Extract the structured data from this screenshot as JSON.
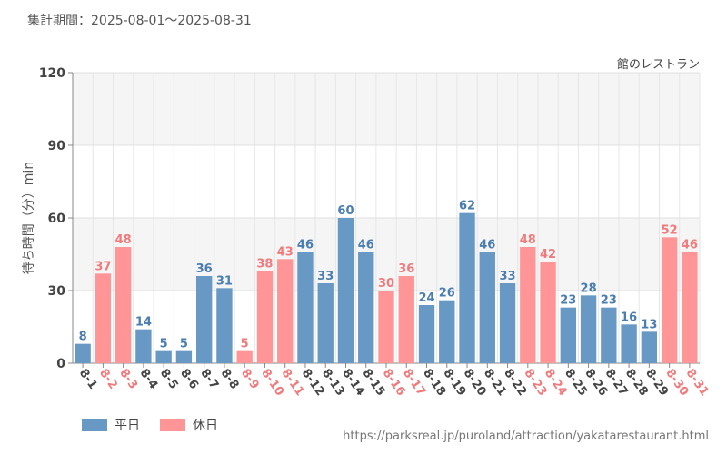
{
  "header": {
    "period": "集計期間：2025-08-01～2025-08-31",
    "facility": "館のレストラン"
  },
  "legend": {
    "weekday": "平日",
    "holiday": "休日"
  },
  "source": "https://parksreal.jp/puroland/attraction/yakatarestaurant.html",
  "colors": {
    "weekday": "#6899C4",
    "holiday": "#FF9596",
    "weekday_label": "#4A7DB0",
    "holiday_label": "#F07A7C"
  },
  "chart_data": {
    "type": "bar",
    "ylabel": "待ち時間（分）min",
    "ylim": [
      0,
      120
    ],
    "yticks": [
      0,
      30,
      60,
      90,
      120
    ],
    "grid": true,
    "legend_position": "bottom-left",
    "categories": [
      "8-1",
      "8-2",
      "8-3",
      "8-4",
      "8-5",
      "8-6",
      "8-7",
      "8-8",
      "8-9",
      "8-10",
      "8-11",
      "8-12",
      "8-13",
      "8-14",
      "8-15",
      "8-16",
      "8-17",
      "8-18",
      "8-19",
      "8-20",
      "8-21",
      "8-22",
      "8-23",
      "8-24",
      "8-25",
      "8-26",
      "8-27",
      "8-28",
      "8-29",
      "8-30",
      "8-31"
    ],
    "values": [
      8,
      37,
      48,
      14,
      5,
      5,
      36,
      31,
      5,
      38,
      43,
      46,
      33,
      60,
      46,
      30,
      36,
      24,
      26,
      62,
      46,
      33,
      48,
      42,
      23,
      28,
      23,
      16,
      13,
      52,
      46
    ],
    "day_type": [
      "weekday",
      "holiday",
      "holiday",
      "weekday",
      "weekday",
      "weekday",
      "weekday",
      "weekday",
      "holiday",
      "holiday",
      "holiday",
      "weekday",
      "weekday",
      "weekday",
      "weekday",
      "holiday",
      "holiday",
      "weekday",
      "weekday",
      "weekday",
      "weekday",
      "weekday",
      "holiday",
      "holiday",
      "weekday",
      "weekday",
      "weekday",
      "weekday",
      "weekday",
      "holiday",
      "holiday"
    ]
  }
}
